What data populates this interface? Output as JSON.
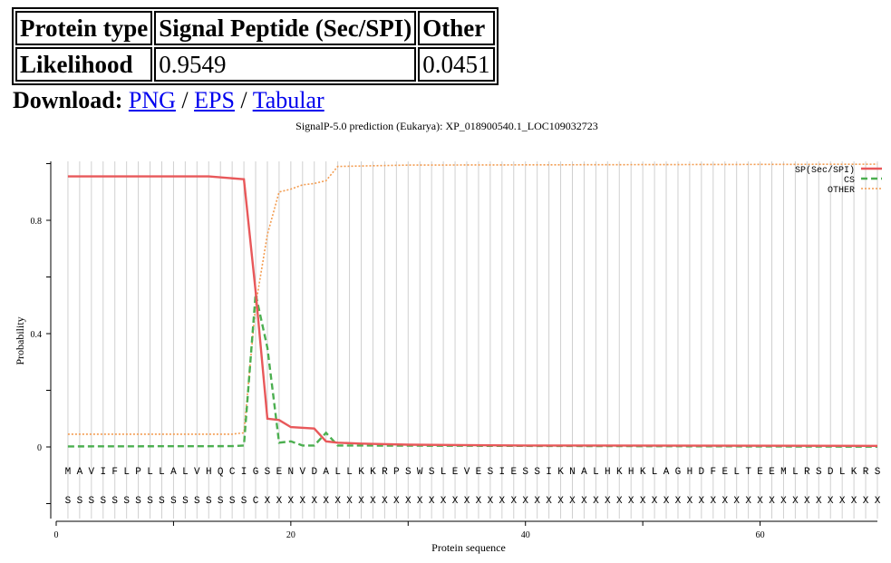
{
  "summary_table": {
    "headers": [
      "Protein type",
      "Signal Peptide (Sec/SPI)",
      "Other"
    ],
    "row_label": "Likelihood",
    "values": [
      "0.9549",
      "0.0451"
    ]
  },
  "download": {
    "label": "Download:",
    "links": [
      "PNG",
      "EPS",
      "Tabular"
    ],
    "separator": "/"
  },
  "chart_data": {
    "type": "line",
    "title": "SignalP-5.0 prediction (Eukarya):  XP_018900540.1_LOC109032723",
    "xlabel": "Protein sequence",
    "ylabel": "Probability",
    "xlim": [
      0,
      70
    ],
    "ylim": [
      -0.22,
      1.0
    ],
    "xticks": [
      0,
      20,
      40,
      60
    ],
    "yticks": [
      0,
      0.4,
      0.8
    ],
    "ytick_labels": [
      "0",
      "0.4",
      "0.8"
    ],
    "sequence": "MAVIFLPLLALVHQCIGSENVDALLKKRPSWSLEVESIESSIKNALHKHKLAGHDFELTEEMLRSDLKRS",
    "labels": "SSSSSSSSSSSSSSSSCXXXXXXXXXXXXXXXXXXXXXXXXXXXXXXXXXXXXXXXXXXXXXXXXXXXXX",
    "legend": [
      "SP(Sec/SPI)",
      "CS",
      "OTHER"
    ],
    "legend_position": "top-right",
    "series": [
      {
        "name": "SP(Sec/SPI)",
        "color": "#e8585a",
        "dash": "solid",
        "points": [
          [
            1,
            0.955
          ],
          [
            13,
            0.955
          ],
          [
            16,
            0.945
          ],
          [
            17,
            0.55
          ],
          [
            18,
            0.1
          ],
          [
            19,
            0.095
          ],
          [
            20,
            0.07
          ],
          [
            22,
            0.065
          ],
          [
            23,
            0.02
          ],
          [
            24,
            0.015
          ],
          [
            26,
            0.012
          ],
          [
            30,
            0.008
          ],
          [
            40,
            0.005
          ],
          [
            70,
            0.004
          ]
        ]
      },
      {
        "name": "CS",
        "color": "#4caf50",
        "dash": "dashed",
        "points": [
          [
            1,
            0.002
          ],
          [
            15,
            0.003
          ],
          [
            16,
            0.005
          ],
          [
            17,
            0.54
          ],
          [
            18,
            0.35
          ],
          [
            19,
            0.015
          ],
          [
            20,
            0.02
          ],
          [
            21,
            0.005
          ],
          [
            22,
            0.005
          ],
          [
            23,
            0.05
          ],
          [
            24,
            0.005
          ],
          [
            70,
            0.001
          ]
        ]
      },
      {
        "name": "OTHER",
        "color": "#f39c50",
        "dash": "dotted",
        "points": [
          [
            1,
            0.045
          ],
          [
            15,
            0.045
          ],
          [
            16,
            0.05
          ],
          [
            17,
            0.5
          ],
          [
            18,
            0.75
          ],
          [
            19,
            0.9
          ],
          [
            20,
            0.91
          ],
          [
            21,
            0.925
          ],
          [
            22,
            0.93
          ],
          [
            23,
            0.94
          ],
          [
            24,
            0.99
          ],
          [
            30,
            0.995
          ],
          [
            70,
            0.998
          ]
        ]
      }
    ]
  }
}
